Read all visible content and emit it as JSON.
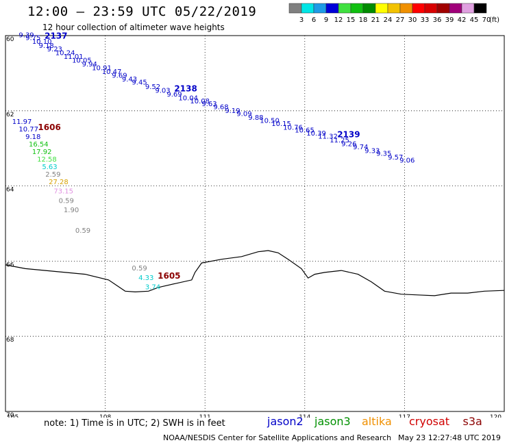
{
  "header": {
    "title": "12:00 — 23:59 UTC 05/22/2019",
    "subtitle": "12 hour collection of altimeter wave heights"
  },
  "legend": {
    "unit": "(ft)",
    "bins": [
      {
        "label": "3",
        "color": "#808080"
      },
      {
        "label": "6",
        "color": "#00e5e5"
      },
      {
        "label": "9",
        "color": "#1e9be6"
      },
      {
        "label": "12",
        "color": "#0000d8"
      },
      {
        "label": "15",
        "color": "#40e040"
      },
      {
        "label": "18",
        "color": "#10c010"
      },
      {
        "label": "21",
        "color": "#008c00"
      },
      {
        "label": "24",
        "color": "#ffff00"
      },
      {
        "label": "27",
        "color": "#f2c200"
      },
      {
        "label": "30",
        "color": "#f09000"
      },
      {
        "label": "33",
        "color": "#ff0000"
      },
      {
        "label": "36",
        "color": "#d80000"
      },
      {
        "label": "39",
        "color": "#a00000"
      },
      {
        "label": "42",
        "color": "#a0007a"
      },
      {
        "label": "45",
        "color": "#e0a0e0"
      },
      {
        "label": "70",
        "color": "#000000"
      }
    ]
  },
  "axes": {
    "lon_ticks": [
      "105",
      "108",
      "111",
      "114",
      "117",
      "120"
    ],
    "lat_ticks": [
      "60",
      "62",
      "64",
      "66",
      "68",
      "70"
    ],
    "lat_hemisphere": "north",
    "lon_hemisphere": "east"
  },
  "passes": [
    {
      "id": "2137",
      "mission": "jason2",
      "color": "#0000c8",
      "points": [
        {
          "lon": 105.4,
          "lat": 60.05,
          "value": "9.39"
        },
        {
          "lon": 105.6,
          "lat": 60.12,
          "value": "9.75"
        },
        {
          "lon": 105.8,
          "lat": 60.22,
          "value": "10.10"
        },
        {
          "lon": 106.0,
          "lat": 60.33,
          "value": "9.18"
        },
        {
          "lon": 106.25,
          "lat": 60.42,
          "value": "9.23"
        },
        {
          "lon": 106.5,
          "lat": 60.52,
          "value": "10.24"
        },
        {
          "lon": 106.75,
          "lat": 60.62,
          "value": "11.01"
        },
        {
          "lon": 107.0,
          "lat": 60.72,
          "value": "10.05"
        },
        {
          "lon": 107.3,
          "lat": 60.82,
          "value": "9.94"
        },
        {
          "lon": 107.6,
          "lat": 60.92,
          "value": "10.91"
        },
        {
          "lon": 107.9,
          "lat": 61.02,
          "value": "10.47"
        },
        {
          "lon": 108.2,
          "lat": 61.12,
          "value": "9.69"
        },
        {
          "lon": 108.5,
          "lat": 61.22,
          "value": "9.43"
        },
        {
          "lon": 108.8,
          "lat": 61.3,
          "value": "9.45"
        }
      ]
    },
    {
      "id": "2138",
      "mission": "jason2",
      "color": "#0000c8",
      "points": [
        {
          "lon": 109.2,
          "lat": 61.42,
          "value": "9.52"
        },
        {
          "lon": 109.5,
          "lat": 61.52,
          "value": "9.03"
        },
        {
          "lon": 109.85,
          "lat": 61.62,
          "value": "9.69"
        },
        {
          "lon": 110.2,
          "lat": 61.72,
          "value": "10.04"
        },
        {
          "lon": 110.55,
          "lat": 61.8,
          "value": "10.08"
        },
        {
          "lon": 110.9,
          "lat": 61.88,
          "value": "9.63"
        },
        {
          "lon": 111.25,
          "lat": 61.96,
          "value": "9.68"
        },
        {
          "lon": 111.6,
          "lat": 62.06,
          "value": "9.19"
        },
        {
          "lon": 111.95,
          "lat": 62.14,
          "value": "9.09"
        },
        {
          "lon": 112.3,
          "lat": 62.24,
          "value": "9.88"
        },
        {
          "lon": 112.65,
          "lat": 62.32,
          "value": "10.50"
        },
        {
          "lon": 113.0,
          "lat": 62.4,
          "value": "10.15"
        },
        {
          "lon": 113.35,
          "lat": 62.5,
          "value": "10.76"
        },
        {
          "lon": 113.7,
          "lat": 62.58,
          "value": "10.65"
        }
      ]
    },
    {
      "id": "2139",
      "mission": "jason2",
      "color": "#0000c8",
      "points": [
        {
          "lon": 114.05,
          "lat": 62.66,
          "value": "10.39"
        },
        {
          "lon": 114.4,
          "lat": 62.74,
          "value": "11.32"
        },
        {
          "lon": 114.75,
          "lat": 62.84,
          "value": "11.25"
        },
        {
          "lon": 115.1,
          "lat": 62.94,
          "value": "9.26"
        },
        {
          "lon": 115.45,
          "lat": 63.02,
          "value": "9.74"
        },
        {
          "lon": 115.8,
          "lat": 63.12,
          "value": "9.33"
        },
        {
          "lon": 116.15,
          "lat": 63.2,
          "value": "9.35"
        },
        {
          "lon": 116.5,
          "lat": 63.3,
          "value": "9.57"
        },
        {
          "lon": 116.85,
          "lat": 63.38,
          "value": "9.06"
        }
      ]
    },
    {
      "id": "1606",
      "mission": "s3a",
      "color": "#8b0000",
      "points": [
        {
          "lon": 105.2,
          "lat": 62.35,
          "value": "11.97",
          "color": "#0000c8"
        },
        {
          "lon": 105.4,
          "lat": 62.55,
          "value": "10.77",
          "color": "#0000c8"
        },
        {
          "lon": 105.6,
          "lat": 62.75,
          "value": "9.18",
          "color": "#0000c8"
        },
        {
          "lon": 105.7,
          "lat": 62.95,
          "value": "16.54",
          "color": "#10c010"
        },
        {
          "lon": 105.8,
          "lat": 63.15,
          "value": "17.92",
          "color": "#10c010"
        },
        {
          "lon": 105.95,
          "lat": 63.35,
          "value": "12.58",
          "color": "#40e040"
        },
        {
          "lon": 106.1,
          "lat": 63.55,
          "value": "5.63",
          "color": "#00cccc"
        },
        {
          "lon": 106.2,
          "lat": 63.75,
          "value": "2.59",
          "color": "#808080"
        },
        {
          "lon": 106.3,
          "lat": 63.95,
          "value": "27.28",
          "color": "#d7a000"
        },
        {
          "lon": 106.45,
          "lat": 64.2,
          "value": "73.15",
          "color": "#e090e0"
        },
        {
          "lon": 106.6,
          "lat": 64.45,
          "value": "0.59",
          "color": "#808080"
        },
        {
          "lon": 106.75,
          "lat": 64.7,
          "value": "1.90",
          "color": "#808080"
        },
        {
          "lon": 107.1,
          "lat": 65.25,
          "value": "0.59",
          "color": "#808080"
        }
      ]
    },
    {
      "id": "1605",
      "mission": "s3a",
      "color": "#8b0000",
      "points": [
        {
          "lon": 108.8,
          "lat": 66.25,
          "value": "0.59",
          "color": "#808080"
        },
        {
          "lon": 109.0,
          "lat": 66.5,
          "value": "4.33",
          "color": "#00cccc"
        },
        {
          "lon": 109.2,
          "lat": 66.75,
          "value": "3.74",
          "color": "#00cccc"
        }
      ]
    }
  ],
  "footer": {
    "note": "note:  1) Time is in UTC;  2) SWH is in feet",
    "missions": [
      {
        "name": "jason2",
        "color": "#0000c8"
      },
      {
        "name": "jason3",
        "color": "#009000"
      },
      {
        "name": "altika",
        "color": "#f09000"
      },
      {
        "name": "cryosat",
        "color": "#d00000"
      },
      {
        "name": "s3a",
        "color": "#8b0000"
      }
    ],
    "credit": "NOAA/NESDIS Center for Satellite Applications and Research",
    "timestamp": "May 23 12:27:48 UTC 2019"
  }
}
